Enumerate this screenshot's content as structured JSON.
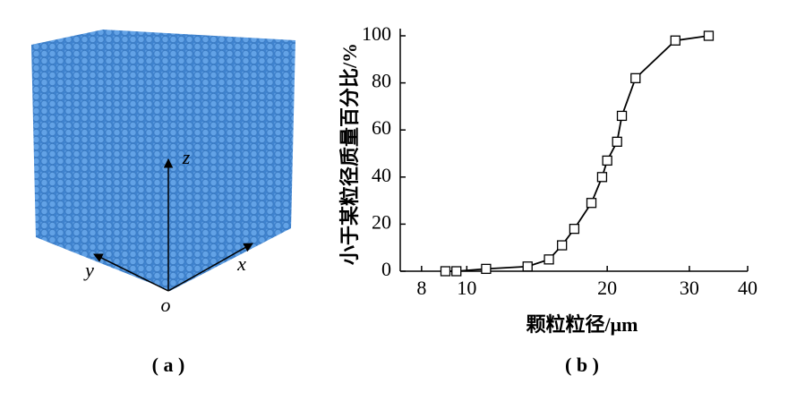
{
  "panel_a": {
    "axis_labels": {
      "x": "x",
      "y": "y",
      "z": "z",
      "origin": "o"
    },
    "caption": "( a )"
  },
  "chart_data": {
    "type": "line",
    "caption": "( b )",
    "x_label": "颗粒粒径/μm",
    "y_label": "小于某粒径质量百分比/%",
    "x": [
      9,
      9.5,
      11,
      13.5,
      15,
      16,
      17,
      18.5,
      19.5,
      20,
      21,
      21.5,
      23,
      28,
      33
    ],
    "values": [
      0,
      0,
      1,
      2,
      5,
      11,
      18,
      29,
      40,
      47,
      55,
      66,
      82,
      98,
      100
    ],
    "color": "#000000",
    "marker": "square",
    "xscale": "log",
    "xlim": [
      7.2,
      40
    ],
    "xticks": [
      8,
      10,
      20,
      30,
      40
    ],
    "ylim": [
      0,
      100
    ],
    "yticks": [
      0,
      20,
      40,
      60,
      80,
      100
    ],
    "grid": false
  }
}
